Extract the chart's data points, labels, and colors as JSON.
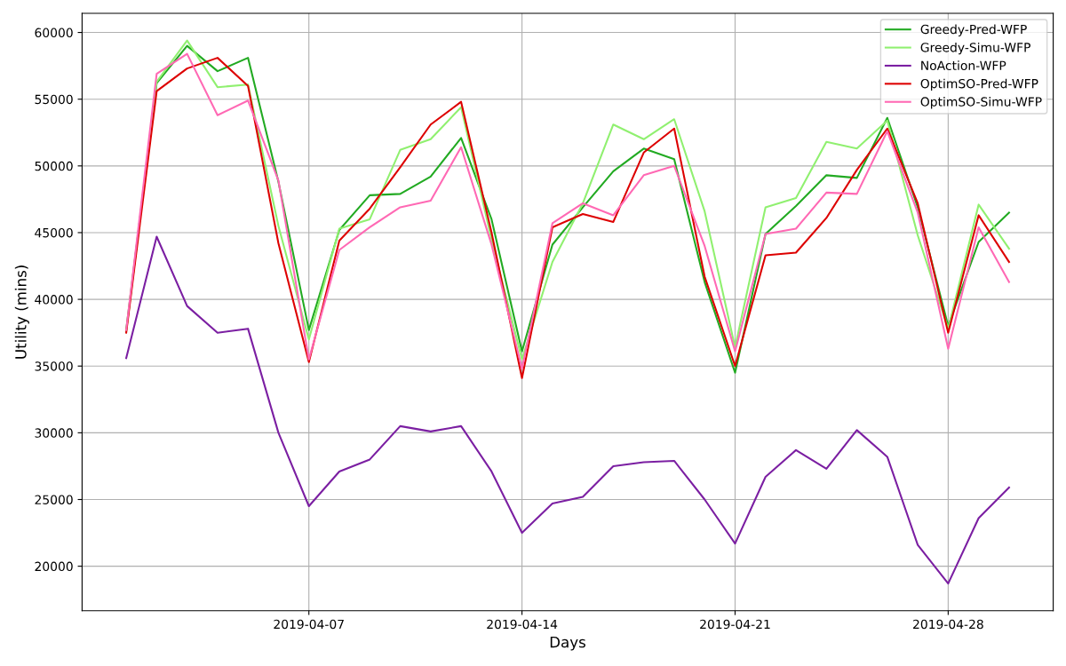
{
  "chart_data": {
    "type": "line",
    "xlabel": "Days",
    "ylabel": "Utility (mins)",
    "x": [
      "2019-04-01",
      "2019-04-02",
      "2019-04-03",
      "2019-04-04",
      "2019-04-05",
      "2019-04-06",
      "2019-04-07",
      "2019-04-08",
      "2019-04-09",
      "2019-04-10",
      "2019-04-11",
      "2019-04-12",
      "2019-04-13",
      "2019-04-14",
      "2019-04-15",
      "2019-04-16",
      "2019-04-17",
      "2019-04-18",
      "2019-04-19",
      "2019-04-20",
      "2019-04-21",
      "2019-04-22",
      "2019-04-23",
      "2019-04-24",
      "2019-04-25",
      "2019-04-26",
      "2019-04-27",
      "2019-04-28",
      "2019-04-29",
      "2019-04-30"
    ],
    "series": [
      {
        "name": "Greedy-Pred-WFP",
        "color": "#22aa22",
        "values": [
          37700,
          56200,
          59000,
          57100,
          58100,
          48800,
          37700,
          45200,
          47800,
          47900,
          49200,
          52100,
          46000,
          36100,
          44100,
          46900,
          49600,
          51300,
          50500,
          41300,
          34500,
          44900,
          47000,
          49300,
          49100,
          53600,
          46900,
          38000,
          44300,
          46500
        ]
      },
      {
        "name": "Greedy-Simu-WFP",
        "color": "#90f070",
        "values": [
          37600,
          56300,
          59400,
          55900,
          56100,
          45500,
          37000,
          45300,
          46000,
          51200,
          52000,
          54400,
          44500,
          35500,
          42800,
          47200,
          53100,
          52000,
          53500,
          46600,
          36400,
          46900,
          47600,
          51800,
          51300,
          53400,
          44800,
          37800,
          47100,
          43800
        ]
      },
      {
        "name": "NoAction-WFP",
        "color": "#7b1fa2",
        "values": [
          35600,
          44700,
          39500,
          37500,
          37800,
          30000,
          24500,
          27100,
          28000,
          30500,
          30100,
          30500,
          27100,
          22500,
          24700,
          25200,
          27500,
          27800,
          27900,
          25000,
          21700,
          26700,
          28700,
          27300,
          30200,
          28200,
          21600,
          18700,
          23600,
          25900
        ]
      },
      {
        "name": "OptimSO-Pred-WFP",
        "color": "#dd0000",
        "values": [
          37500,
          55600,
          57300,
          58100,
          56000,
          44200,
          35300,
          44400,
          46800,
          49900,
          53100,
          54800,
          45000,
          34100,
          45400,
          46400,
          45800,
          51000,
          52800,
          41700,
          35000,
          43300,
          43500,
          46100,
          49700,
          52800,
          47200,
          37500,
          46300,
          42800
        ]
      },
      {
        "name": "OptimSO-Simu-WFP",
        "color": "#ff69b4",
        "values": [
          37700,
          56900,
          58400,
          53800,
          54900,
          48900,
          35500,
          43700,
          45400,
          46900,
          47400,
          51400,
          44100,
          34800,
          45700,
          47200,
          46300,
          49300,
          50000,
          44000,
          36100,
          44900,
          45300,
          48000,
          47900,
          52600,
          46500,
          36300,
          45400,
          41300
        ]
      }
    ],
    "xlim": [
      "2019-03-30T13:12",
      "2019-05-01T10:48"
    ],
    "xticks": [
      {
        "value": "2019-04-07",
        "label": "2019-04-07"
      },
      {
        "value": "2019-04-14",
        "label": "2019-04-14"
      },
      {
        "value": "2019-04-21",
        "label": "2019-04-21"
      },
      {
        "value": "2019-04-28",
        "label": "2019-04-28"
      }
    ],
    "ylim": [
      16665,
      61435
    ],
    "yticks": [
      20000,
      25000,
      30000,
      35000,
      40000,
      45000,
      50000,
      55000,
      60000
    ],
    "grid": true,
    "legend": "top right",
    "marker": "none",
    "line_style": "solid"
  }
}
